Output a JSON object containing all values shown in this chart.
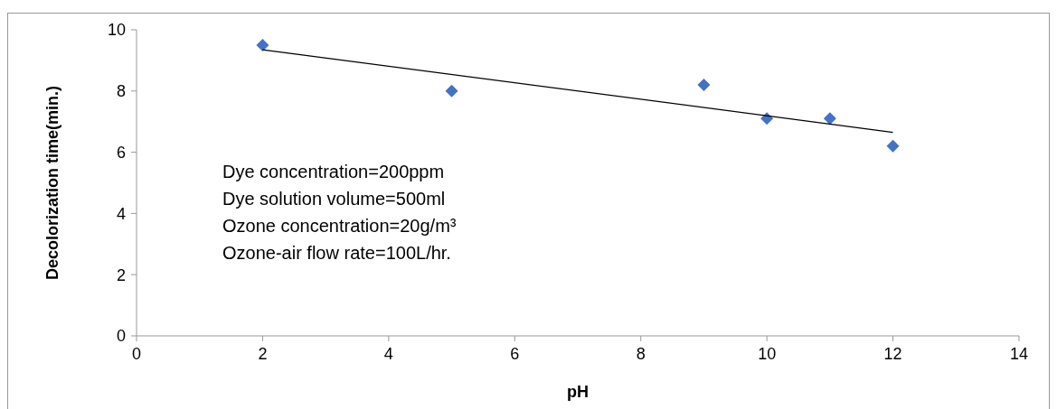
{
  "chart_data": {
    "type": "scatter",
    "xlabel": "pH",
    "ylabel": "Decolorization time(min.)",
    "xlim": [
      0,
      14
    ],
    "xticks": [
      0,
      2,
      4,
      6,
      8,
      10,
      12,
      14
    ],
    "ylim": [
      0,
      10
    ],
    "yticks": [
      0,
      2,
      4,
      6,
      8,
      10
    ],
    "grid": false,
    "marker": "diamond",
    "series": [
      {
        "color": "#4472c4",
        "x": [
          2,
          5,
          9,
          10,
          11,
          12
        ],
        "values": [
          9.5,
          8,
          8.2,
          7.1,
          7.1,
          6.2
        ]
      },
      {
        "type": "line",
        "marker": "none",
        "color": "#000000",
        "x": [
          2,
          12
        ],
        "values": [
          9.35,
          6.65
        ]
      }
    ],
    "annotations": [
      "Dye concentration=200ppm",
      "Dye solution volume=500ml",
      "Ozone concentration=20g/m³",
      "Ozone-air flow rate=100L/hr."
    ]
  }
}
